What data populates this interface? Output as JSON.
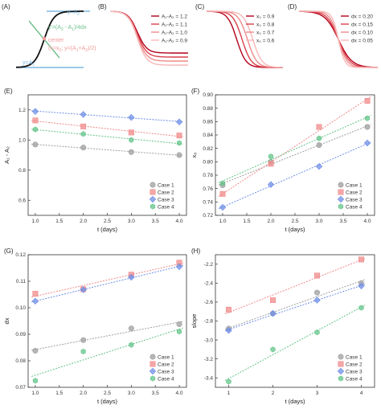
{
  "colors": {
    "case1": "#9e9e9e",
    "case2": "#f08a8a",
    "case3": "#6f8fe6",
    "case4": "#63c489",
    "blue_line": "#7fb8e0",
    "green_text": "#6fc08b",
    "pink_text": "#f19a9a",
    "red_dark": "#b3001b",
    "red_light": "#f7b7b7"
  },
  "panel_a": {
    "label": "(A)",
    "ann_top": "y=A",
    "ann_top_sub": "2",
    "ann_slope": "y'=(A",
    "ann_slope_2": "2",
    "ann_slope_mid": " - A",
    "ann_slope_1": "1",
    "ann_slope_end": ")/4dx",
    "ann_center": "center",
    "ann_center_formula_a": "(x=x",
    "ann_center_formula_a_sub": "0",
    "ann_center_formula_b": "; y=(A",
    "ann_center_formula_b_sub1": "1",
    "ann_center_formula_c": "+A",
    "ann_center_formula_c_sub2": "2",
    "ann_center_formula_d": ")/2)",
    "ann_bottom": "y=A",
    "ann_bottom_sub": "1"
  },
  "panel_b": {
    "label": "(B)",
    "legend": [
      "A₁-A₂ = 1.2",
      "A₁-A₂ = 1.1",
      "A₁-A₂ = 1.0",
      "A₁-A₂ = 0.9"
    ]
  },
  "panel_c": {
    "label": "(C)",
    "legend": [
      "x₀ = 0.9",
      "x₀ = 0.8",
      "x₀ = 0.7",
      "x₀ = 0.6"
    ]
  },
  "panel_d": {
    "label": "(D)",
    "legend": [
      "dx = 0.20",
      "dx = 0.15",
      "dx = 0.10",
      "dx = 0.05"
    ]
  },
  "chart_data": [
    {
      "panel": "E",
      "type": "scatter",
      "xlabel": "t (days)",
      "ylabel": "A₁ - A₂",
      "xlim": [
        0.85,
        4.15
      ],
      "ylim": [
        0.5,
        1.3
      ],
      "xticks": [
        "1.0",
        "1.5",
        "2.0",
        "2.5",
        "3.0",
        "3.5",
        "4.0"
      ],
      "yticks": [
        "0.6",
        "0.8",
        "1.0",
        "1.2"
      ],
      "x": [
        1,
        2,
        3,
        4
      ],
      "legend_position": "bottom-right",
      "series": [
        {
          "name": "Case 1",
          "marker": "circle",
          "values": [
            0.97,
            0.95,
            0.92,
            0.9
          ]
        },
        {
          "name": "Case 2",
          "marker": "square",
          "values": [
            1.13,
            1.09,
            1.05,
            1.03
          ]
        },
        {
          "name": "Case 3",
          "marker": "diamond",
          "values": [
            1.19,
            1.17,
            1.15,
            1.12
          ]
        },
        {
          "name": "Case 4",
          "marker": "hexagon",
          "values": [
            1.07,
            1.04,
            1.0,
            0.98
          ]
        }
      ]
    },
    {
      "panel": "F",
      "type": "scatter",
      "xlabel": "t (days)",
      "ylabel": "x₀",
      "xlim": [
        0.85,
        4.15
      ],
      "ylim": [
        0.72,
        0.9
      ],
      "xticks": [
        "1.0",
        "1.5",
        "2.0",
        "2.5",
        "3.0",
        "3.5",
        "4.0"
      ],
      "yticks": [
        "0.72",
        "0.74",
        "0.76",
        "0.78",
        "0.80",
        "0.82",
        "0.84",
        "0.86",
        "0.88",
        "0.90"
      ],
      "x": [
        1,
        2,
        3,
        4
      ],
      "legend_position": "bottom-right",
      "series": [
        {
          "name": "Case 1",
          "marker": "circle",
          "values": [
            0.765,
            0.8,
            0.825,
            0.852
          ]
        },
        {
          "name": "Case 2",
          "marker": "square",
          "values": [
            0.752,
            0.797,
            0.852,
            0.891
          ]
        },
        {
          "name": "Case 3",
          "marker": "diamond",
          "values": [
            0.732,
            0.766,
            0.793,
            0.828
          ]
        },
        {
          "name": "Case 4",
          "marker": "hexagon",
          "values": [
            0.768,
            0.808,
            0.835,
            0.865
          ]
        }
      ]
    },
    {
      "panel": "G",
      "type": "scatter",
      "xlabel": "t (days)",
      "ylabel": "dx",
      "xlim": [
        0.85,
        4.15
      ],
      "ylim": [
        0.07,
        0.12
      ],
      "xticks": [
        "1.0",
        "1.5",
        "2.0",
        "2.5",
        "3.0",
        "3.5",
        "4.0"
      ],
      "yticks": [
        "0.07",
        "0.08",
        "0.09",
        "0.10",
        "0.11",
        "0.12"
      ],
      "x": [
        1,
        2,
        3,
        4
      ],
      "legend_position": "bottom-right",
      "series": [
        {
          "name": "Case 1",
          "marker": "circle",
          "values": [
            0.0838,
            0.0878,
            0.0922,
            0.0938
          ]
        },
        {
          "name": "Case 2",
          "marker": "square",
          "values": [
            0.1053,
            0.107,
            0.1125,
            0.117
          ]
        },
        {
          "name": "Case 3",
          "marker": "diamond",
          "values": [
            0.1025,
            0.1068,
            0.1115,
            0.1155
          ]
        },
        {
          "name": "Case 4",
          "marker": "hexagon",
          "values": [
            0.0725,
            0.0835,
            0.086,
            0.091
          ]
        }
      ]
    },
    {
      "panel": "H",
      "type": "scatter",
      "xlabel": "t (days)",
      "ylabel": "slope",
      "xlim": [
        0.7,
        4.3
      ],
      "ylim": [
        -3.5,
        -2.1
      ],
      "xticks": [
        "1",
        "2",
        "3",
        "4"
      ],
      "yticks": [
        "-3.4",
        "-3.2",
        "-3.0",
        "-2.8",
        "-2.6",
        "-2.4",
        "-2.2"
      ],
      "x": [
        1,
        2,
        3,
        4
      ],
      "legend_position": "bottom-right",
      "series": [
        {
          "name": "Case 1",
          "marker": "circle",
          "values": [
            -2.88,
            -2.72,
            -2.5,
            -2.4
          ]
        },
        {
          "name": "Case 2",
          "marker": "square",
          "values": [
            -2.68,
            -2.58,
            -2.32,
            -2.15
          ]
        },
        {
          "name": "Case 3",
          "marker": "diamond",
          "values": [
            -2.9,
            -2.72,
            -2.58,
            -2.43
          ]
        },
        {
          "name": "Case 4",
          "marker": "hexagon",
          "values": [
            -3.44,
            -3.1,
            -2.92,
            -2.66
          ]
        }
      ]
    }
  ]
}
